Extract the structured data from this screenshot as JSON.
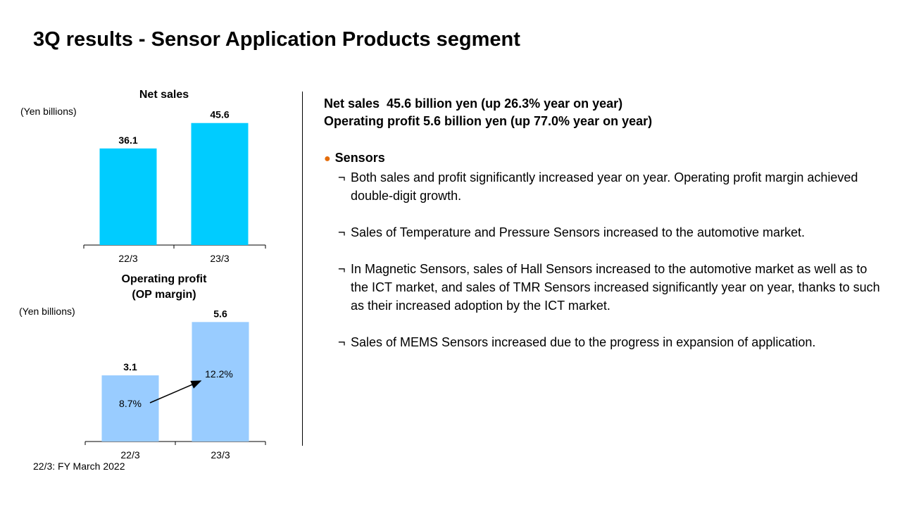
{
  "page": {
    "title": "3Q results - Sensor Application Products segment",
    "footnote": "22/3: FY March 2022"
  },
  "colors": {
    "net_sales_bar": "#00CCFF",
    "op_profit_bar": "#99CCFF",
    "bullet": "#E46C0A"
  },
  "chart_data": [
    {
      "type": "bar",
      "title": "Net sales",
      "ylabel": "(Yen billions)",
      "categories": [
        "22/3",
        "23/3"
      ],
      "values": [
        36.1,
        45.6
      ],
      "value_labels": [
        "36.1",
        "45.6"
      ],
      "ylim": [
        0,
        50
      ],
      "grid": false
    },
    {
      "type": "bar",
      "title": "Operating profit\n(OP margin)",
      "title_lines": [
        "Operating profit",
        "(OP margin)"
      ],
      "ylabel": "(Yen billions)",
      "categories": [
        "22/3",
        "23/3"
      ],
      "values": [
        3.1,
        5.6
      ],
      "value_labels": [
        "3.1",
        "5.6"
      ],
      "margins": [
        "8.7%",
        "12.2%"
      ],
      "ylim": [
        0,
        6.6
      ],
      "grid": false
    }
  ],
  "summary": {
    "line1": "Net sales  45.6 billion yen (up 26.3% year on year)",
    "line2": "Operating profit 5.6 billion yen (up 77.0% year on year)"
  },
  "section": {
    "heading": "Sensors",
    "bullet_mark": "●",
    "item_mark": "¬",
    "items": [
      "Both sales and profit significantly increased year on year. Operating profit margin achieved double-digit growth.",
      "Sales of Temperature and Pressure Sensors increased to the automotive market.",
      "In Magnetic Sensors, sales of Hall Sensors increased to the automotive market as well as to the ICT market, and sales of TMR Sensors increased significantly year on year, thanks to such as their increased adoption by the ICT market.",
      "Sales of MEMS Sensors increased due to the progress in expansion of application."
    ]
  }
}
